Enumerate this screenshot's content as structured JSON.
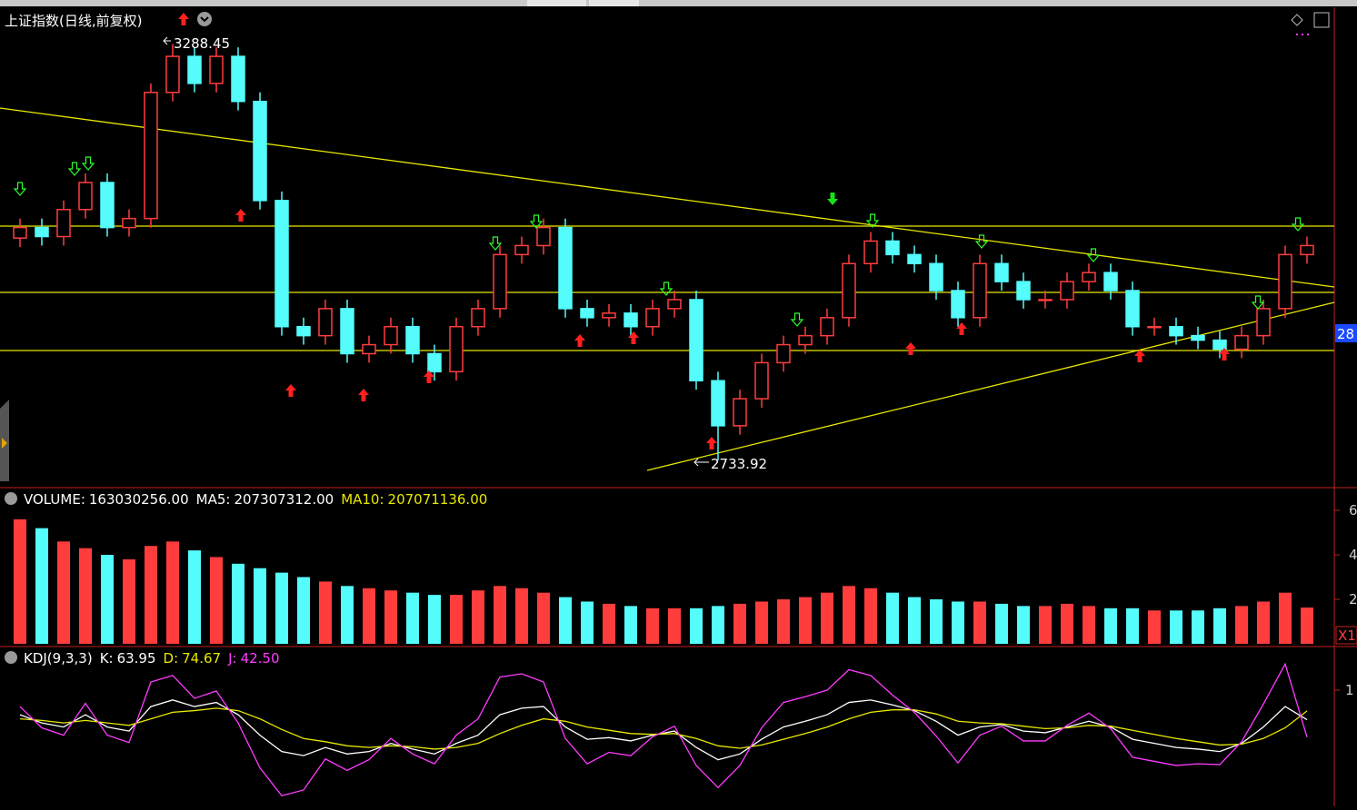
{
  "chart_data": [
    {
      "type": "candlestick",
      "title": "上证指数(日线,前复权)",
      "current_price_label": "28",
      "up_color": "#ff3d3d",
      "down_color": "#54fcfc",
      "ylim": [
        2700,
        3335
      ],
      "open": [
        3030,
        3044,
        3032,
        3068,
        3104,
        3044,
        3056,
        3224,
        3272,
        3236,
        3272,
        3212,
        3080,
        2912,
        2900,
        2936,
        2876,
        2888,
        2912,
        2876,
        2852,
        2912,
        2936,
        3008,
        3020,
        3044,
        2936,
        2924,
        2930,
        2912,
        2936,
        2948,
        2840,
        2780,
        2816,
        2864,
        2888,
        2900,
        2924,
        2996,
        3026,
        3008,
        2996,
        2960,
        2924,
        2996,
        2972,
        2948,
        2948,
        2972,
        2984,
        2960,
        2912,
        2912,
        2900,
        2894,
        2882,
        2900,
        2936,
        3008
      ],
      "high": [
        3056,
        3056,
        3080,
        3116,
        3116,
        3068,
        3236,
        3288.45,
        3284,
        3284,
        3284,
        3224,
        3092,
        2924,
        2948,
        2948,
        2900,
        2924,
        2924,
        2888,
        2924,
        2948,
        3020,
        3032,
        3056,
        3056,
        2948,
        2942,
        2942,
        2948,
        2960,
        2960,
        2852,
        2828,
        2876,
        2900,
        2912,
        2936,
        3008,
        3038,
        3038,
        3020,
        3008,
        2972,
        3008,
        3008,
        2984,
        2960,
        2984,
        2996,
        2996,
        2972,
        2924,
        2924,
        2912,
        2906,
        2912,
        2948,
        3020,
        3032
      ],
      "low": [
        3018,
        3020,
        3020,
        3056,
        3032,
        3032,
        3044,
        3212,
        3224,
        3224,
        3200,
        3068,
        2900,
        2888,
        2888,
        2864,
        2864,
        2876,
        2864,
        2840,
        2840,
        2900,
        2924,
        2996,
        3008,
        2924,
        2912,
        2912,
        2900,
        2900,
        2924,
        2828,
        2733.92,
        2768,
        2804,
        2852,
        2876,
        2888,
        2912,
        2984,
        2996,
        2984,
        2948,
        2912,
        2912,
        2960,
        2936,
        2936,
        2936,
        2960,
        2948,
        2900,
        2900,
        2888,
        2882,
        2870,
        2870,
        2888,
        2924,
        2996
      ],
      "close": [
        3044,
        3032,
        3068,
        3104,
        3044,
        3056,
        3224,
        3272,
        3236,
        3272,
        3212,
        3080,
        2912,
        2900,
        2936,
        2876,
        2888,
        2912,
        2876,
        2852,
        2912,
        2936,
        3008,
        3020,
        3044,
        2936,
        2924,
        2930,
        2912,
        2936,
        2948,
        2840,
        2780,
        2816,
        2864,
        2888,
        2900,
        2924,
        2996,
        3026,
        3008,
        2996,
        2960,
        2924,
        2996,
        2972,
        2948,
        2948,
        2972,
        2984,
        2960,
        2912,
        2912,
        2900,
        2894,
        2882,
        2900,
        2936,
        3008,
        3020
      ]
    },
    {
      "type": "bar",
      "title": "VOLUME:",
      "value_label": "163030256.00",
      "legend": [
        {
          "label": "MA5:",
          "value_label": "207307312.00",
          "color": "#ffffff"
        },
        {
          "label": "MA10:",
          "value_label": "207071136.00",
          "color": "#e8e800"
        }
      ],
      "values": [
        560000000,
        520000000,
        460000000,
        430000000,
        400000000,
        380000000,
        440000000,
        460000000,
        420000000,
        390000000,
        360000000,
        340000000,
        320000000,
        300000000,
        280000000,
        260000000,
        250000000,
        240000000,
        230000000,
        220000000,
        220000000,
        240000000,
        260000000,
        250000000,
        230000000,
        210000000,
        190000000,
        180000000,
        170000000,
        160000000,
        160000000,
        160000000,
        170000000,
        180000000,
        190000000,
        200000000,
        210000000,
        230000000,
        260000000,
        250000000,
        230000000,
        210000000,
        200000000,
        190000000,
        190000000,
        180000000,
        170000000,
        170000000,
        180000000,
        170000000,
        160000000,
        160000000,
        150000000,
        150000000,
        150000000,
        160000000,
        170000000,
        190000000,
        230000000,
        163030256
      ],
      "ylim": [
        0,
        690000000
      ],
      "yticks": [
        {
          "value": 600000000,
          "label": "6"
        },
        {
          "value": 400000000,
          "label": "4"
        },
        {
          "value": 200000000,
          "label": "2"
        }
      ],
      "unit_label": "X1"
    },
    {
      "type": "line",
      "title": "KDJ(9,3,3)",
      "ylim": [
        -42,
        150
      ],
      "yticks": [
        {
          "value": 100,
          "label": "1"
        }
      ],
      "series": [
        {
          "name": "K:",
          "color": "#ffffff",
          "value_label": "63.95",
          "values": [
            70,
            60,
            55,
            70,
            55,
            50,
            80,
            88,
            80,
            85,
            70,
            45,
            25,
            20,
            30,
            22,
            25,
            35,
            28,
            22,
            35,
            45,
            70,
            78,
            80,
            55,
            40,
            42,
            38,
            45,
            50,
            30,
            15,
            22,
            40,
            55,
            62,
            70,
            85,
            88,
            82,
            75,
            62,
            45,
            55,
            58,
            50,
            48,
            55,
            62,
            55,
            40,
            35,
            30,
            28,
            25,
            35,
            55,
            80,
            63.95
          ]
        },
        {
          "name": "D:",
          "color": "#e8e800",
          "value_label": "74.67",
          "values": [
            65,
            63,
            60,
            63,
            60,
            57,
            65,
            73,
            75,
            78,
            75,
            65,
            52,
            41,
            37,
            32,
            30,
            32,
            31,
            28,
            30,
            35,
            47,
            57,
            65,
            62,
            55,
            51,
            47,
            46,
            47,
            41,
            32,
            29,
            33,
            40,
            47,
            55,
            65,
            73,
            76,
            76,
            71,
            62,
            60,
            59,
            56,
            53,
            54,
            57,
            56,
            51,
            46,
            41,
            37,
            33,
            34,
            41,
            54,
            74.67
          ]
        },
        {
          "name": "J:",
          "color": "#ff3cff",
          "value_label": "42.50",
          "values": [
            80,
            54,
            45,
            84,
            45,
            36,
            110,
            118,
            90,
            99,
            60,
            5,
            -29,
            -22,
            16,
            2,
            15,
            41,
            22,
            10,
            45,
            65,
            116,
            120,
            110,
            41,
            10,
            24,
            20,
            43,
            56,
            8,
            -19,
            8,
            54,
            85,
            92,
            100,
            125,
            118,
            94,
            73,
            44,
            11,
            45,
            56,
            38,
            38,
            57,
            72,
            53,
            18,
            13,
            8,
            10,
            9,
            37,
            83,
            132,
            42.5
          ]
        }
      ]
    }
  ]
}
